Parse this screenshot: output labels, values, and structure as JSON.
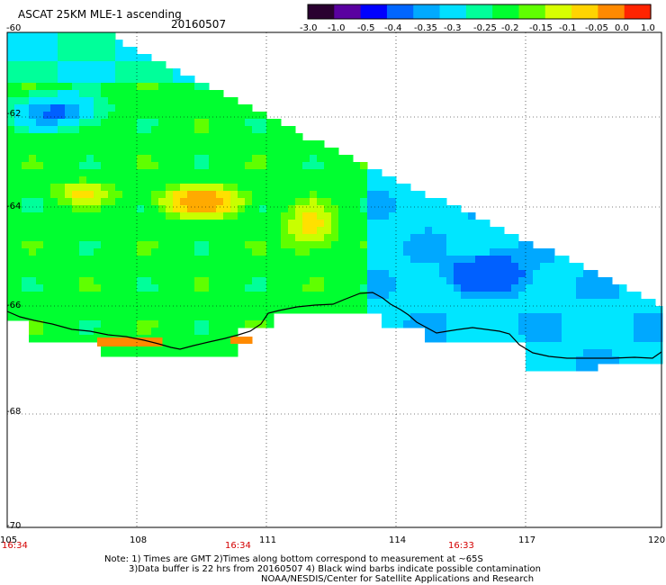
{
  "header": {
    "product": "ASCAT 25KM MLE-1 ascending",
    "date": "20160507"
  },
  "colorbar": {
    "labels": [
      "-3.0",
      "-1.0",
      "-0.5",
      "-0.4",
      "-0.35",
      "-0.3",
      "-0.25",
      "-0.2",
      "-0.15",
      "-0.1",
      "-0.05",
      "0.0",
      "1.0"
    ],
    "colors": [
      "#2a0030",
      "#5a00a0",
      "#0000ff",
      "#0066ff",
      "#00aaff",
      "#00e0ff",
      "#00ff9a",
      "#00ff30",
      "#60ff00",
      "#d8ff00",
      "#ffd400",
      "#ff8a00",
      "#ff2400"
    ]
  },
  "chart_data": {
    "type": "heatmap",
    "xticks": [
      "105",
      "108",
      "111",
      "114",
      "117",
      "120"
    ],
    "yticks": [
      "-60",
      "-62",
      "-64",
      "-66",
      "-68",
      "-70"
    ],
    "xlim": [
      105,
      120
    ],
    "ylim": [
      -70,
      -60
    ],
    "pass_times": [
      "16:34",
      "16:34",
      "16:33"
    ]
  },
  "notes": [
    "Note: 1) Times are GMT 2)Times along bottom correspond to measurement at ~65S",
    "3)Data buffer is 22 hrs from 20160507 4) Black wind barbs indicate possible contamination",
    "NOAA/NESDIS/Center for Satellite Applications and Research"
  ]
}
